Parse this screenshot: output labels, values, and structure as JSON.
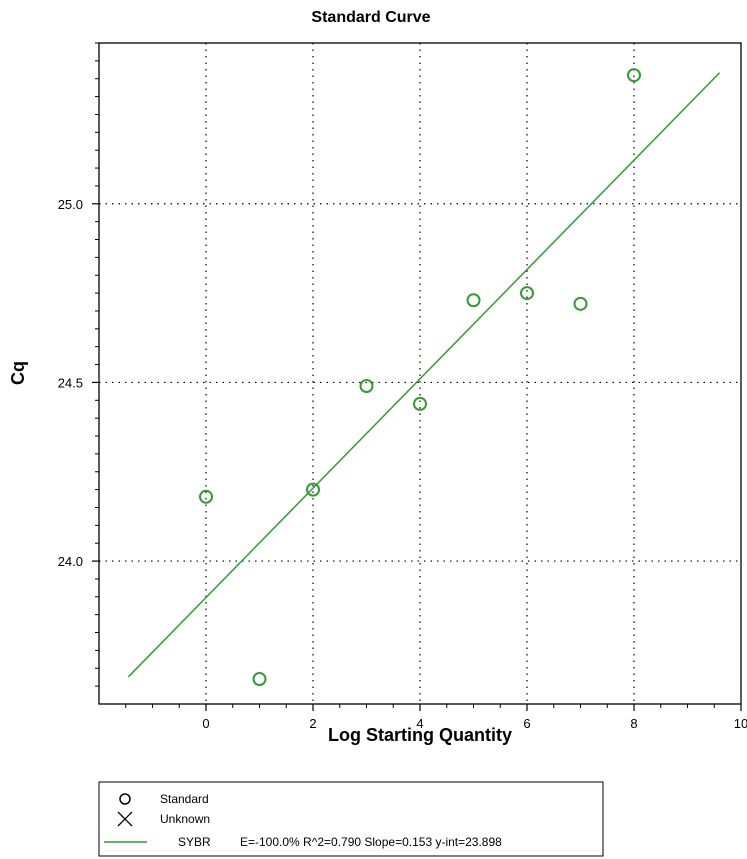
{
  "chart_data": {
    "type": "scatter",
    "title": "Standard Curve",
    "xlabel": "Log Starting Quantity",
    "ylabel": "Cq",
    "xlim": [
      -2,
      10
    ],
    "ylim": [
      23.6,
      25.45
    ],
    "xticks": [
      "0",
      "2",
      "4",
      "6",
      "8",
      "10"
    ],
    "yticks": [
      "24.0",
      "24.5",
      "25.0"
    ],
    "grid": true,
    "series": [
      {
        "name": "Standard",
        "marker": "circle",
        "color": "#2e9e2e",
        "points": [
          {
            "x": 0,
            "y": 24.18
          },
          {
            "x": 1,
            "y": 23.67
          },
          {
            "x": 2,
            "y": 24.2
          },
          {
            "x": 3,
            "y": 24.49
          },
          {
            "x": 4,
            "y": 24.44
          },
          {
            "x": 5,
            "y": 24.73
          },
          {
            "x": 6,
            "y": 24.75
          },
          {
            "x": 7,
            "y": 24.72
          },
          {
            "x": 8,
            "y": 25.36
          }
        ]
      }
    ],
    "fit_line": {
      "name": "SYBR",
      "color": "#2e9e2e",
      "x_range": [
        -1.45,
        9.6
      ],
      "slope": 0.153,
      "intercept": 23.898
    },
    "legend": {
      "placement": "bottom-left",
      "entries": [
        {
          "marker": "circle",
          "label": "Standard"
        },
        {
          "marker": "x",
          "label": "Unknown"
        },
        {
          "marker": "line",
          "label": "SYBR",
          "detail": "E=-100.0% R^2=0.790 Slope=0.153 y-int=23.898"
        }
      ]
    }
  }
}
